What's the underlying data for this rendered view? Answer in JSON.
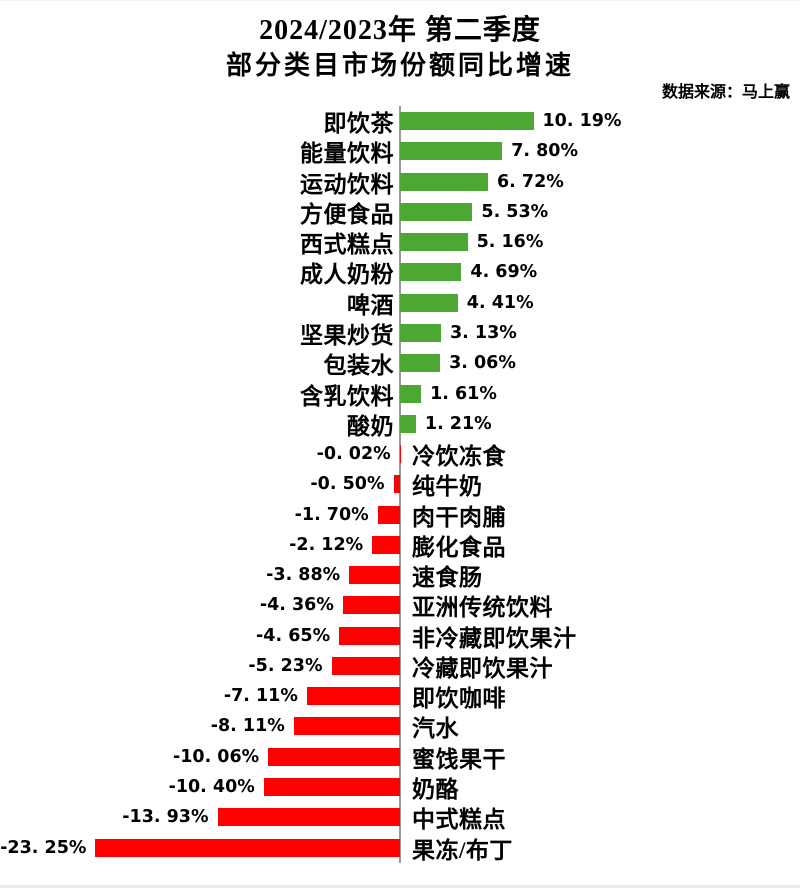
{
  "title": {
    "line1": "2024/2023年 第二季度",
    "line2": "部分类目市场份额同比增速"
  },
  "source_note": "数据来源：马上赢",
  "colors": {
    "positive": "#4CA733",
    "negative": "#FF0000",
    "axis": "#9a9a9a"
  },
  "chart_data": {
    "type": "bar",
    "orientation": "horizontal",
    "title": "2024/2023年 第二季度 部分类目市场份额同比增速",
    "unit": "%",
    "xlim": [
      -23.25,
      10.19
    ],
    "grid": false,
    "legend": false,
    "categories": [
      "即饮茶",
      "能量饮料",
      "运动饮料",
      "方便食品",
      "西式糕点",
      "成人奶粉",
      "啤酒",
      "坚果炒货",
      "包装水",
      "含乳饮料",
      "酸奶",
      "冷饮冻食",
      "纯牛奶",
      "肉干肉脯",
      "膨化食品",
      "速食肠",
      "亚洲传统饮料",
      "非冷藏即饮果汁",
      "冷藏即饮果汁",
      "即饮咖啡",
      "汽水",
      "蜜饯果干",
      "奶酪",
      "中式糕点",
      "果冻/布丁"
    ],
    "values": [
      10.19,
      7.8,
      6.72,
      5.53,
      5.16,
      4.69,
      4.41,
      3.13,
      3.06,
      1.61,
      1.21,
      -0.02,
      -0.5,
      -1.7,
      -2.12,
      -3.88,
      -4.36,
      -4.65,
      -5.23,
      -7.11,
      -8.11,
      -10.06,
      -10.4,
      -13.93,
      -23.25
    ],
    "value_labels": [
      "10. 19%",
      "7. 80%",
      "6. 72%",
      "5. 53%",
      "5. 16%",
      "4. 69%",
      "4. 41%",
      "3. 13%",
      "3. 06%",
      "1. 61%",
      "1. 21%",
      "-0. 02%",
      "-0. 50%",
      "-1. 70%",
      "-2. 12%",
      "-3. 88%",
      "-4. 36%",
      "-4. 65%",
      "-5. 23%",
      "-7. 11%",
      "-8. 11%",
      "-10. 06%",
      "-10. 40%",
      "-13. 93%",
      "-23. 25%"
    ]
  }
}
